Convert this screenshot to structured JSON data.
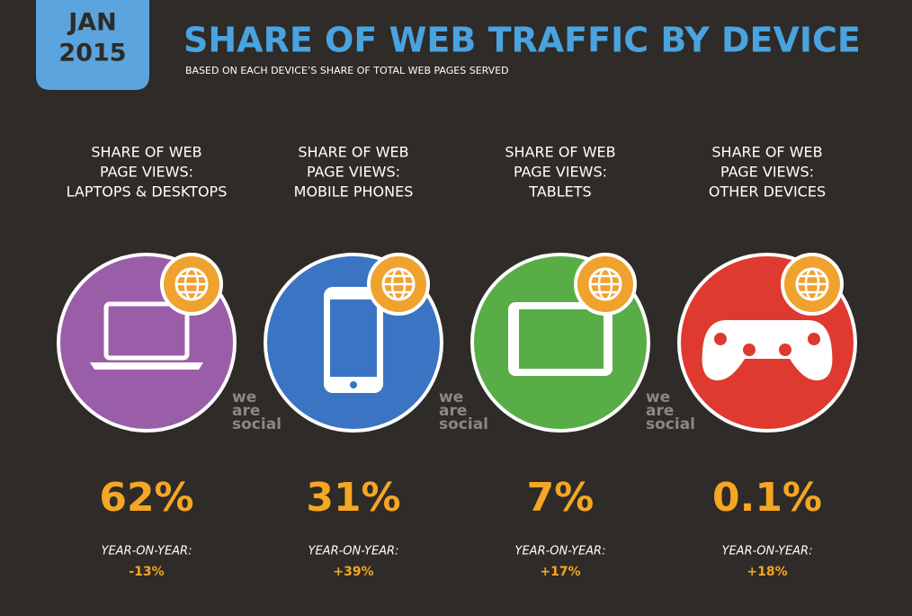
{
  "header": {
    "badge": [
      "JAN",
      "2015"
    ],
    "title": "SHARE OF WEB TRAFFIC BY DEVICE",
    "subtitle": "BASED ON EACH DEVICE’S SHARE OF TOTAL WEB PAGES SERVED"
  },
  "panels": [
    {
      "label": [
        "SHARE OF WEB",
        "PAGE VIEWS:",
        "LAPTOPS & DESKTOPS"
      ],
      "value": "62%",
      "yoy_label": "YEAR-ON-YEAR:",
      "yoy": "-13%",
      "color": "#9a5ea8"
    },
    {
      "label": [
        "SHARE OF WEB",
        "PAGE VIEWS:",
        "MOBILE PHONES"
      ],
      "value": "31%",
      "yoy_label": "YEAR-ON-YEAR:",
      "yoy": "+39%",
      "color": "#3b74c2"
    },
    {
      "label": [
        "SHARE OF WEB",
        "PAGE VIEWS:",
        "TABLETS"
      ],
      "value": "7%",
      "yoy_label": "YEAR-ON-YEAR:",
      "yoy": "+17%",
      "color": "#58ad46"
    },
    {
      "label": [
        "SHARE OF WEB",
        "PAGE VIEWS:",
        "OTHER DEVICES"
      ],
      "value": "0.1%",
      "yoy_label": "YEAR-ON-YEAR:",
      "yoy": "+18%",
      "color": "#de3a2f"
    }
  ],
  "watermark": [
    "we",
    "are",
    "social"
  ]
}
